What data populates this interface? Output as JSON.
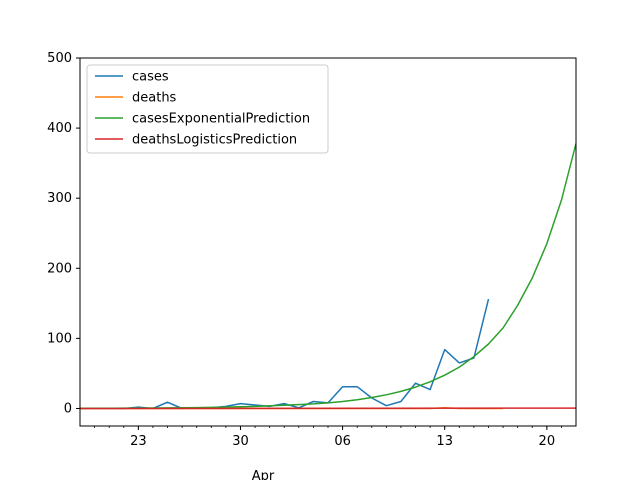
{
  "chart_data": {
    "type": "line",
    "ylim": [
      -25,
      500
    ],
    "xlim": [
      "2020-03-19",
      "2020-04-22"
    ],
    "ytick_labels": [
      "0",
      "100",
      "200",
      "300",
      "400",
      "500"
    ],
    "xtick_major_labels": [
      "23",
      "30",
      "06",
      "13",
      "20"
    ],
    "xtick_major_dates": [
      "2020-03-23",
      "2020-03-30",
      "2020-04-06",
      "2020-04-13",
      "2020-04-20"
    ],
    "xlabel": "",
    "month_label": "Apr",
    "grid": false,
    "legend_position": "upper-left",
    "series": [
      {
        "name": "cases",
        "color": "#1f77b4",
        "x": [
          "2020-03-19",
          "2020-03-20",
          "2020-03-21",
          "2020-03-22",
          "2020-03-23",
          "2020-03-24",
          "2020-03-25",
          "2020-03-26",
          "2020-03-27",
          "2020-03-28",
          "2020-03-29",
          "2020-03-30",
          "2020-03-31",
          "2020-04-01",
          "2020-04-02",
          "2020-04-03",
          "2020-04-04",
          "2020-04-05",
          "2020-04-06",
          "2020-04-07",
          "2020-04-08",
          "2020-04-09",
          "2020-04-10",
          "2020-04-11",
          "2020-04-12",
          "2020-04-13",
          "2020-04-14",
          "2020-04-15",
          "2020-04-16",
          "2020-04-17"
        ],
        "y": [
          0,
          0,
          0,
          0,
          2,
          0,
          9,
          0,
          1,
          1,
          3,
          7,
          5,
          3,
          7,
          1,
          10,
          8,
          31,
          31,
          15,
          4,
          10,
          36,
          27,
          84,
          65,
          72,
          156,
          null
        ]
      },
      {
        "name": "deaths",
        "color": "#ff7f0e",
        "x": [
          "2020-03-19",
          "2020-03-23",
          "2020-03-27",
          "2020-03-31",
          "2020-04-04",
          "2020-04-08",
          "2020-04-12",
          "2020-04-13",
          "2020-04-14",
          "2020-04-17"
        ],
        "y": [
          0,
          0,
          0,
          0,
          0,
          0,
          0,
          1,
          0,
          0
        ]
      },
      {
        "name": "casesExponentialPrediction",
        "color": "#2ca02c",
        "x": [
          "2020-03-19",
          "2020-03-21",
          "2020-03-23",
          "2020-03-25",
          "2020-03-27",
          "2020-03-29",
          "2020-03-31",
          "2020-04-02",
          "2020-04-04",
          "2020-04-05",
          "2020-04-06",
          "2020-04-07",
          "2020-04-08",
          "2020-04-09",
          "2020-04-10",
          "2020-04-11",
          "2020-04-12",
          "2020-04-13",
          "2020-04-14",
          "2020-04-15",
          "2020-04-16",
          "2020-04-17",
          "2020-04-18",
          "2020-04-19",
          "2020-04-20",
          "2020-04-21",
          "2020-04-22"
        ],
        "y": [
          0.2,
          0.3,
          0.5,
          0.8,
          1.2,
          1.9,
          3.0,
          4.7,
          6.5,
          8,
          10,
          12.5,
          15.6,
          19.5,
          24.3,
          30.5,
          38,
          47.5,
          59,
          74,
          92,
          115,
          147,
          186,
          235,
          297,
          378
        ]
      },
      {
        "name": "deathsLogisticsPrediction",
        "color": "#d62728",
        "x": [
          "2020-03-19",
          "2020-04-22"
        ],
        "y": [
          0,
          0.5
        ]
      }
    ]
  }
}
